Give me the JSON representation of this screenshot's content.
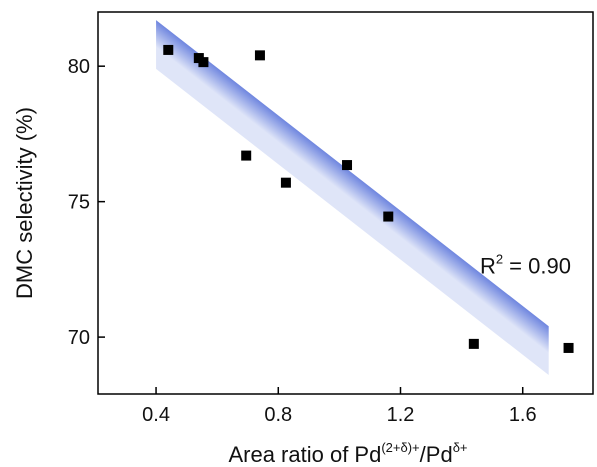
{
  "chart_data": {
    "type": "scatter",
    "title": "",
    "xlabel_main": "Area ratio of Pd",
    "xlabel_sup1": "(2+δ)+",
    "xlabel_mid": "/Pd",
    "xlabel_sup2": "δ+",
    "ylabel": "DMC selectivity (%)",
    "xlim": [
      0.21,
      1.83
    ],
    "ylim": [
      67.9,
      82.0
    ],
    "x_ticks": [
      0.4,
      0.8,
      1.2,
      1.6
    ],
    "x_tick_labels": [
      "0.4",
      "0.8",
      "1.2",
      "1.6"
    ],
    "y_ticks": [
      70,
      75,
      80
    ],
    "y_tick_labels": [
      "70",
      "75",
      "80"
    ],
    "grid": false,
    "legend": "none",
    "points": [
      {
        "x": 0.44,
        "y": 80.6
      },
      {
        "x": 0.54,
        "y": 80.3
      },
      {
        "x": 0.555,
        "y": 80.15
      },
      {
        "x": 0.74,
        "y": 80.4
      },
      {
        "x": 0.695,
        "y": 76.7
      },
      {
        "x": 0.825,
        "y": 75.7
      },
      {
        "x": 1.025,
        "y": 76.35
      },
      {
        "x": 1.16,
        "y": 74.45
      },
      {
        "x": 1.44,
        "y": 69.75
      },
      {
        "x": 1.75,
        "y": 69.6
      }
    ],
    "fit_band": {
      "x_start": 0.4,
      "y_start": 80.8,
      "x_end": 1.685,
      "y_end": 69.5,
      "half_width_y": 0.9
    },
    "annotation": {
      "base": "R",
      "sup": "2",
      "rest": " = 0.90",
      "x": 1.46,
      "y": 72.35
    },
    "colors": {
      "marker": "#000000",
      "band_edge": "#6f86df",
      "band_center": "#dfe5f8",
      "axis": "#000000"
    }
  }
}
